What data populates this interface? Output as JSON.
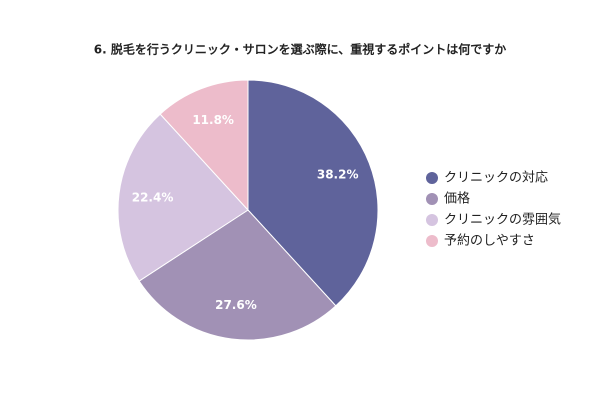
{
  "chart_data": {
    "type": "pie",
    "title": "6. 脱毛を行うクリニック・サロンを選ぶ際に、重視するポイントは何ですか",
    "categories": [
      "クリニックの対応",
      "価格",
      "クリニックの雰囲気",
      "予約のしやすさ"
    ],
    "values": [
      38.2,
      27.6,
      22.4,
      11.8
    ],
    "value_labels": [
      "38.2%",
      "27.6%",
      "22.4%",
      "11.8%"
    ],
    "colors": [
      "#5f639b",
      "#a191b5",
      "#d5c4e0",
      "#edbccb"
    ],
    "legend": "right"
  }
}
